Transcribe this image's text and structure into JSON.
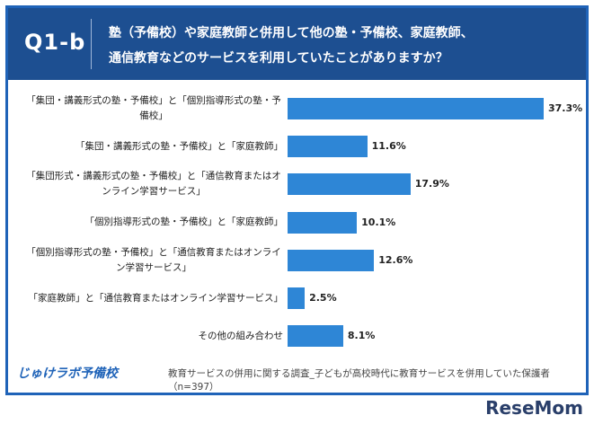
{
  "header": {
    "label": "Q1-b",
    "question_lines": [
      "塾（予備校）や家庭教師と併用して他の塾・予備校、家庭教師、",
      "通信教育などのサービスを利用していたことがありますか？"
    ]
  },
  "chart_data": {
    "type": "bar",
    "categories": [
      "「集団・講義形式の塾・予備校」と「個別指導形式の塾・予備校」",
      "「集団・講義形式の塾・予備校」と「家庭教師」",
      "「集団形式・講義形式の塾・予備校」と「通信教育またはオンライン学習サービス」",
      "「個別指導形式の塾・予備校」と「家庭教師」",
      "「個別指導形式の塾・予備校」と「通信教育またはオンライン学習サービス」",
      "「家庭教師」と「通信教育またはオンライン学習サービス」",
      "その他の組み合わせ"
    ],
    "values": [
      37.3,
      11.6,
      17.9,
      10.1,
      12.6,
      2.5,
      8.1
    ],
    "value_labels": [
      "37.3%",
      "11.6%",
      "17.9%",
      "10.1%",
      "12.6%",
      "2.5%",
      "8.1%"
    ],
    "color": "#2e86d6"
  },
  "footer": {
    "logo": "じゅけラボ予備校",
    "note": "教育サービスの併用に関する調査_子どもが高校時代に教育サービスを併用していた保護者（n=397）"
  },
  "watermark": "ReseMom"
}
